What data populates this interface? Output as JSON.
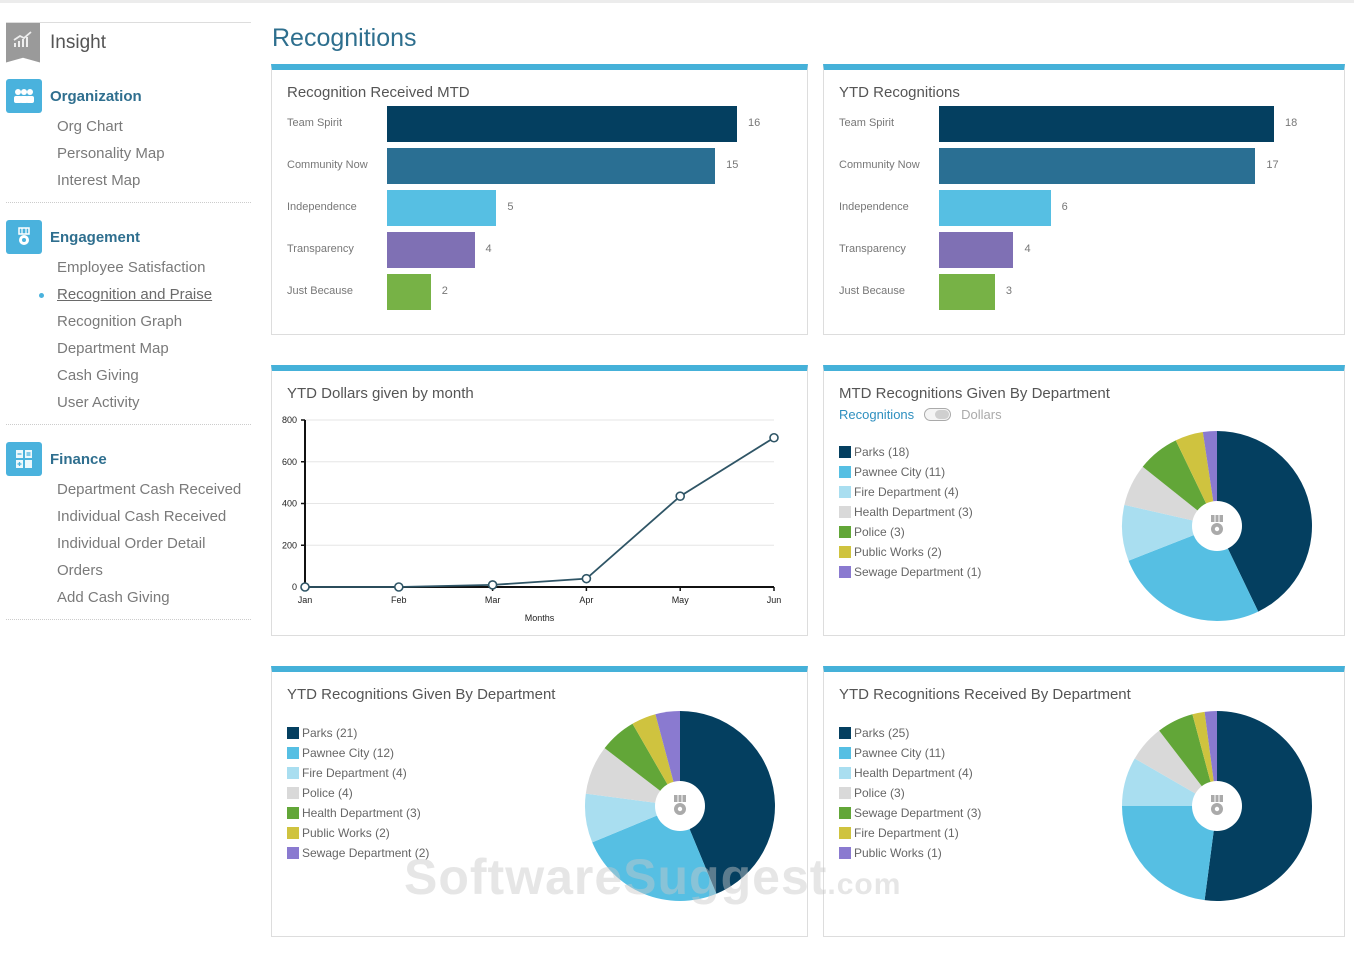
{
  "sidebar": {
    "insight_label": "Insight",
    "sections": [
      {
        "label": "Organization",
        "icon": "people-icon",
        "items": [
          "Org Chart",
          "Personality Map",
          "Interest Map"
        ]
      },
      {
        "label": "Engagement",
        "icon": "medal-icon",
        "items": [
          "Employee Satisfaction",
          "Recognition and Praise",
          "Recognition Graph",
          "Department Map",
          "Cash Giving",
          "User Activity"
        ],
        "active_index": 1
      },
      {
        "label": "Finance",
        "icon": "calculator-icon",
        "items": [
          "Department Cash Received",
          "Individual Cash Received",
          "Individual Order Detail",
          "Orders",
          "Add Cash Giving"
        ]
      }
    ]
  },
  "page": {
    "title": "Recognitions"
  },
  "colors": {
    "accent": "#45b1d9",
    "bars": [
      "#043f60",
      "#2a6f93",
      "#56bfe3",
      "#7f70b4",
      "#77b246"
    ],
    "pie": [
      "#043f60",
      "#56bfe3",
      "#a9def0",
      "#d9d9d9",
      "#62a638",
      "#cfc33f",
      "#8a7ad0"
    ],
    "line": "#2f5566"
  },
  "toggle": {
    "on_label": "Recognitions",
    "off_label": "Dollars"
  },
  "watermark": {
    "main": "SoftwareSuggest",
    "suffix": ".com"
  },
  "chart_data": [
    {
      "type": "bar",
      "title": "Recognition Received MTD",
      "categories": [
        "Team Spirit",
        "Community Now",
        "Independence",
        "Transparency",
        "Just Because"
      ],
      "values": [
        16,
        15,
        5,
        4,
        2
      ]
    },
    {
      "type": "bar",
      "title": "YTD Recognitions",
      "categories": [
        "Team Spirit",
        "Community Now",
        "Independence",
        "Transparency",
        "Just Because"
      ],
      "values": [
        18,
        17,
        6,
        4,
        3
      ]
    },
    {
      "type": "line",
      "title": "YTD Dollars given by month",
      "x": [
        "Jan",
        "Feb",
        "Mar",
        "Apr",
        "May",
        "Jun"
      ],
      "y": [
        0,
        0,
        10,
        40,
        435,
        715
      ],
      "xlabel": "Months",
      "ylabel": "",
      "ylim": [
        0,
        800
      ],
      "yticks": [
        0,
        200,
        400,
        600,
        800
      ],
      "grid": true
    },
    {
      "type": "pie",
      "title": "MTD Recognitions Given By Department",
      "labels": [
        "Parks (18)",
        "Pawnee City (11)",
        "Fire Department (4)",
        "Health Department (3)",
        "Police (3)",
        "Public Works (2)",
        "Sewage Department (1)"
      ],
      "values": [
        18,
        11,
        4,
        3,
        3,
        2,
        1
      ],
      "legend": "left"
    },
    {
      "type": "pie",
      "title": "YTD Recognitions Given By Department",
      "labels": [
        "Parks (21)",
        "Pawnee City (12)",
        "Fire Department (4)",
        "Police (4)",
        "Health Department (3)",
        "Public Works (2)",
        "Sewage Department (2)"
      ],
      "values": [
        21,
        12,
        4,
        4,
        3,
        2,
        2
      ],
      "legend": "left"
    },
    {
      "type": "pie",
      "title": "YTD Recognitions Received By Department",
      "labels": [
        "Parks (25)",
        "Pawnee City (11)",
        "Health Department (4)",
        "Police (3)",
        "Sewage Department (3)",
        "Fire Department (1)",
        "Public Works (1)"
      ],
      "values": [
        25,
        11,
        4,
        3,
        3,
        1,
        1
      ],
      "legend": "left"
    }
  ]
}
